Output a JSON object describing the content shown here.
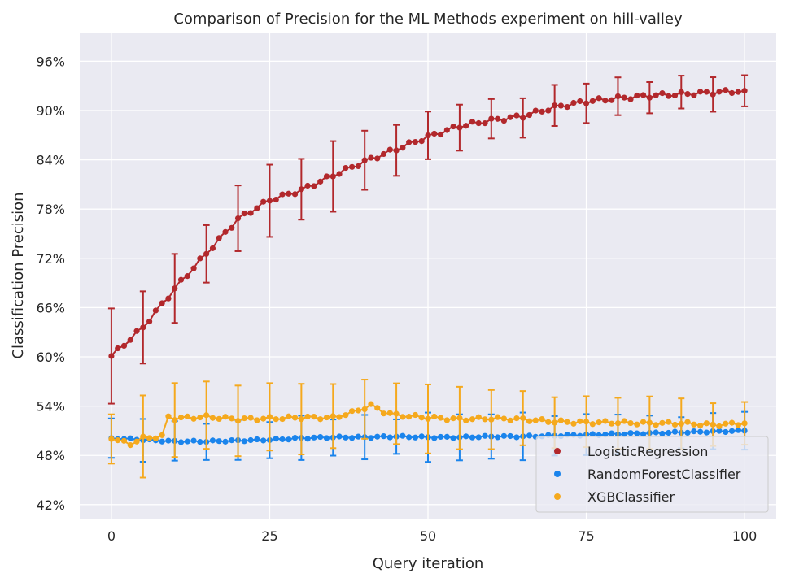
{
  "chart_data": {
    "type": "line",
    "title": "Comparison of Precision for the ML Methods experiment on hill-valley",
    "xlabel": "Query iteration",
    "ylabel": "Classification Precision",
    "xlim": [
      -5,
      105
    ],
    "ylim": [
      0.403,
      0.995
    ],
    "xticks": [
      0,
      25,
      50,
      75,
      100
    ],
    "xtick_labels": [
      "0",
      "25",
      "50",
      "75",
      "100"
    ],
    "yticks": [
      0.42,
      0.48,
      0.54,
      0.6,
      0.66,
      0.72,
      0.78,
      0.84,
      0.9,
      0.96
    ],
    "ytick_labels": [
      "42%",
      "48%",
      "54%",
      "60%",
      "66%",
      "72%",
      "78%",
      "84%",
      "90%",
      "96%"
    ],
    "grid": true,
    "legend_position": "bottom-right",
    "errorbar_every": 5,
    "series": [
      {
        "name": "LogisticRegression",
        "color": "#b2282c",
        "points": [
          [
            0,
            0.601
          ],
          [
            5,
            0.636
          ],
          [
            10,
            0.683
          ],
          [
            15,
            0.726
          ],
          [
            20,
            0.768
          ],
          [
            25,
            0.791
          ],
          [
            30,
            0.803
          ],
          [
            35,
            0.821
          ],
          [
            40,
            0.838
          ],
          [
            45,
            0.853
          ],
          [
            50,
            0.868
          ],
          [
            55,
            0.881
          ],
          [
            60,
            0.888
          ],
          [
            65,
            0.893
          ],
          [
            70,
            0.904
          ],
          [
            75,
            0.911
          ],
          [
            80,
            0.915
          ],
          [
            85,
            0.918
          ],
          [
            90,
            0.92
          ],
          [
            95,
            0.922
          ],
          [
            100,
            0.924
          ]
        ],
        "errors": [
          0.058,
          0.044,
          0.042,
          0.035,
          0.04,
          0.044,
          0.037,
          0.043,
          0.036,
          0.031,
          0.029,
          0.028,
          0.024,
          0.024,
          0.025,
          0.024,
          0.023,
          0.019,
          0.02,
          0.021,
          0.019
        ],
        "noise_amplitude": 0.0025
      },
      {
        "name": "RandomForestClassifier",
        "color": "#1a84ec",
        "points": [
          [
            0,
            0.501
          ],
          [
            5,
            0.499
          ],
          [
            10,
            0.497
          ],
          [
            15,
            0.497
          ],
          [
            20,
            0.498
          ],
          [
            25,
            0.499
          ],
          [
            30,
            0.501
          ],
          [
            35,
            0.502
          ],
          [
            40,
            0.502
          ],
          [
            45,
            0.503
          ],
          [
            50,
            0.502
          ],
          [
            55,
            0.502
          ],
          [
            60,
            0.503
          ],
          [
            65,
            0.503
          ],
          [
            70,
            0.504
          ],
          [
            75,
            0.505
          ],
          [
            80,
            0.506
          ],
          [
            85,
            0.507
          ],
          [
            90,
            0.508
          ],
          [
            95,
            0.509
          ],
          [
            100,
            0.51
          ]
        ],
        "errors": [
          0.024,
          0.026,
          0.024,
          0.022,
          0.024,
          0.022,
          0.027,
          0.022,
          0.027,
          0.021,
          0.03,
          0.028,
          0.027,
          0.029,
          0.024,
          0.025,
          0.024,
          0.021,
          0.019,
          0.022,
          0.023
        ],
        "noise_amplitude": 0.001
      },
      {
        "name": "XGBClassifier",
        "color": "#f5a91d",
        "points": [
          [
            0,
            0.5
          ],
          [
            3,
            0.494
          ],
          [
            5,
            0.501
          ],
          [
            8,
            0.503
          ],
          [
            9,
            0.527
          ],
          [
            10,
            0.525
          ],
          [
            15,
            0.527
          ],
          [
            20,
            0.524
          ],
          [
            25,
            0.525
          ],
          [
            30,
            0.526
          ],
          [
            35,
            0.526
          ],
          [
            38,
            0.532
          ],
          [
            41,
            0.541
          ],
          [
            43,
            0.533
          ],
          [
            45,
            0.529
          ],
          [
            50,
            0.526
          ],
          [
            55,
            0.524
          ],
          [
            60,
            0.525
          ],
          [
            65,
            0.524
          ],
          [
            70,
            0.521
          ],
          [
            75,
            0.52
          ],
          [
            80,
            0.52
          ],
          [
            85,
            0.519
          ],
          [
            90,
            0.519
          ],
          [
            95,
            0.517
          ],
          [
            100,
            0.519
          ]
        ],
        "errors": [
          0.03,
          0.05,
          0.045,
          0.041,
          0.043,
          0.041,
          0.043,
          0.039,
          0.036,
          0.037,
          0.042,
          0.038,
          0.036,
          0.033,
          0.031,
          0.031,
          0.031,
          0.032,
          0.031,
          0.026,
          0.026
        ],
        "noise_amplitude": 0.002
      }
    ]
  }
}
